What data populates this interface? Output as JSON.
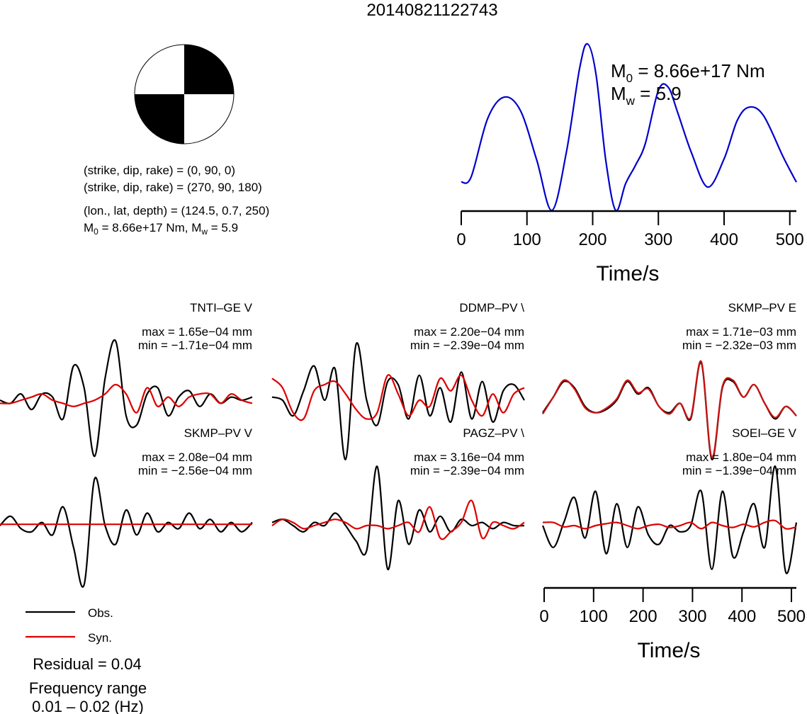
{
  "title": "20140821122743",
  "beachball": {
    "colors": {
      "fill": "#000000",
      "background": "#ffffff"
    }
  },
  "params": {
    "line1": "(strike, dip, rake) = (0, 90, 0)",
    "line2": "(strike, dip, rake) = (270, 90, 180)",
    "line3": "(lon., lat, depth) = (124.5, 0.7, 250)",
    "m0_label": "M",
    "m0_sub": "0",
    "m0_value": " = 8.66e+17 Nm, M",
    "mw_sub": "w",
    "mw_value": " = 5.9"
  },
  "stf_annotation": {
    "m0_label": "M",
    "m0_sub": "0",
    "m0_value": " = 8.66e+17 Nm",
    "mw_label": "M",
    "mw_sub": "w",
    "mw_value": " = 5.9"
  },
  "legend": {
    "obs_label": "Obs.",
    "syn_label": "Syn.",
    "residual": "Residual = 0.04",
    "freq_label": "Frequency range",
    "freq_value": "0.01 – 0.02 (Hz)"
  },
  "chart_data": [
    {
      "type": "line",
      "id": "source-time-function",
      "xlabel": "Time/s",
      "xlim": [
        0,
        510
      ],
      "xticks": [
        0,
        100,
        200,
        300,
        400,
        500
      ],
      "series": [
        {
          "color": "#0000cc",
          "x": [
            0,
            15,
            40,
            65,
            90,
            115,
            138,
            160,
            180,
            192,
            205,
            220,
            235,
            250,
            265,
            280,
            300,
            315,
            330,
            350,
            375,
            400,
            420,
            438,
            460,
            490,
            510
          ],
          "y": [
            0.17,
            0.2,
            0.55,
            0.68,
            0.6,
            0.3,
            0.0,
            0.35,
            0.85,
            1.0,
            0.82,
            0.3,
            0.0,
            0.16,
            0.27,
            0.4,
            0.72,
            0.74,
            0.58,
            0.35,
            0.14,
            0.31,
            0.54,
            0.62,
            0.57,
            0.32,
            0.17
          ]
        }
      ]
    },
    {
      "type": "line",
      "id": "TNTI-GE",
      "station": "TNTI–GE V",
      "max": "max = 1.65e−04 mm",
      "min": "min = −1.71e−04 mm",
      "series": [
        {
          "name": "Obs.",
          "color": "#000000",
          "y": [
            0,
            -0.05,
            0.1,
            -0.15,
            0.1,
            0.05,
            -0.3,
            0.55,
            0.2,
            -0.9,
            0.35,
            0.95,
            -0.25,
            -0.4,
            0.1,
            0.2,
            -0.25,
            0.05,
            0.15,
            -0.1,
            0.1,
            -0.05,
            0.05,
            0.0,
            0.05
          ]
        },
        {
          "name": "Syn.",
          "color": "#dd0000",
          "y": [
            -0.05,
            -0.05,
            0.0,
            0.05,
            0.1,
            0.0,
            -0.05,
            -0.1,
            -0.05,
            0.0,
            0.1,
            0.25,
            0.1,
            -0.2,
            0.2,
            -0.1,
            0.05,
            -0.1,
            0.05,
            0.1,
            0.1,
            -0.05,
            0.1,
            0.0,
            -0.05
          ]
        }
      ]
    },
    {
      "type": "line",
      "id": "DDMP-PV",
      "station": "DDMP–PV \\",
      "max": "max = 2.20e−04 mm",
      "min": "min = −2.39e−04 mm",
      "series": [
        {
          "name": "Obs.",
          "color": "#000000",
          "y": [
            0.05,
            0.0,
            -0.25,
            0.15,
            0.55,
            0.0,
            0.5,
            -0.95,
            0.9,
            0.0,
            -0.4,
            0.3,
            0.25,
            -0.3,
            0.4,
            -0.25,
            0.2,
            -0.35,
            0.45,
            -0.3,
            0.3,
            -0.35,
            0.15,
            0.25,
            0.0
          ]
        },
        {
          "name": "Syn.",
          "color": "#dd0000",
          "y": [
            0.35,
            0.2,
            -0.2,
            -0.3,
            0.15,
            0.25,
            0.3,
            0.1,
            -0.15,
            -0.3,
            -0.2,
            0.4,
            0.1,
            -0.25,
            0.0,
            -0.1,
            0.35,
            0.15,
            0.4,
            0.0,
            -0.25,
            0.1,
            -0.2,
            0.1,
            0.2
          ]
        }
      ]
    },
    {
      "type": "line",
      "id": "SKMP-PV-E",
      "station": "SKMP–PV E",
      "max": "max = 1.71e−03 mm",
      "min": "min = −2.32e−03 mm",
      "series": [
        {
          "name": "Obs.",
          "color": "#000000",
          "y": [
            -0.2,
            0.05,
            0.3,
            0.2,
            -0.1,
            -0.2,
            -0.15,
            0.0,
            0.3,
            0.1,
            0.2,
            -0.1,
            -0.2,
            -0.05,
            -0.3,
            0.6,
            -0.95,
            0.2,
            0.3,
            0.05,
            0.25,
            -0.05,
            -0.3,
            -0.1,
            -0.25
          ]
        },
        {
          "name": "Syn.",
          "color": "#cc1111",
          "y": [
            -0.22,
            0.05,
            0.32,
            0.18,
            -0.12,
            -0.2,
            -0.13,
            0.02,
            0.32,
            0.12,
            0.18,
            -0.1,
            -0.22,
            -0.05,
            -0.28,
            0.62,
            -0.92,
            0.22,
            0.32,
            0.05,
            0.25,
            -0.05,
            -0.28,
            -0.1,
            -0.25
          ]
        }
      ]
    },
    {
      "type": "line",
      "id": "SKMP-PV-V",
      "station": "SKMP–PV V",
      "max": "max = 2.08e−04 mm",
      "min": "min = −2.56e−04 mm",
      "series": [
        {
          "name": "Obs.",
          "color": "#000000",
          "y": [
            0.0,
            0.15,
            -0.05,
            -0.1,
            0.05,
            -0.15,
            0.3,
            -0.35,
            -0.95,
            0.75,
            0.0,
            -0.3,
            0.25,
            -0.15,
            0.2,
            -0.1,
            0.05,
            -0.05,
            0.2,
            -0.05,
            0.1,
            -0.1,
            0.05,
            -0.1,
            0.05
          ]
        },
        {
          "name": "Syn.",
          "color": "#dd0000",
          "y": [
            0.02,
            0.02,
            0.02,
            0.02,
            0.02,
            0.02,
            0.02,
            0.02,
            0.02,
            0.02,
            0.02,
            0.02,
            0.02,
            0.02,
            0.02,
            0.02,
            0.02,
            0.02,
            0.02,
            0.02,
            0.02,
            0.02,
            0.02,
            0.02,
            0.02
          ]
        }
      ]
    },
    {
      "type": "line",
      "id": "PAGZ-PV",
      "station": "PAGZ–PV \\",
      "max": "max = 3.16e−04 mm",
      "min": "min = −2.39e−04 mm",
      "series": [
        {
          "name": "Obs.",
          "color": "#000000",
          "y": [
            0.05,
            0.1,
            0.0,
            -0.1,
            0.05,
            0.0,
            0.2,
            0.0,
            -0.25,
            -0.4,
            0.95,
            -0.7,
            0.4,
            -0.3,
            0.25,
            -0.1,
            0.15,
            -0.1,
            0.1,
            0.0,
            0.05,
            -0.05,
            0.05,
            0.0,
            0.0
          ]
        },
        {
          "name": "Syn.",
          "color": "#dd0000",
          "y": [
            0.0,
            0.1,
            0.05,
            -0.05,
            0.0,
            0.05,
            0.1,
            0.05,
            -0.05,
            0.0,
            0.0,
            -0.05,
            0.0,
            0.05,
            -0.1,
            0.3,
            -0.2,
            -0.1,
            0.05,
            0.4,
            -0.2,
            0.05,
            0.0,
            -0.05,
            0.05
          ]
        }
      ]
    },
    {
      "type": "line",
      "id": "SOEI-GE",
      "station": "SOEI–GE V",
      "max": "max = 1.80e−04 mm",
      "min": "min = −1.39e−04 mm",
      "series": [
        {
          "name": "Obs.",
          "color": "#000000",
          "y": [
            0.0,
            -0.35,
            0.05,
            0.45,
            -0.2,
            0.55,
            -0.45,
            0.35,
            -0.35,
            0.3,
            -0.15,
            -0.3,
            0.0,
            -0.1,
            0.0,
            0.55,
            -0.7,
            0.55,
            -0.5,
            -0.1,
            0.35,
            -0.35,
            0.95,
            -0.75,
            0.05
          ]
        },
        {
          "name": "Syn.",
          "color": "#dd0000",
          "y": [
            0.05,
            0.05,
            -0.02,
            0.0,
            -0.05,
            0.0,
            0.03,
            0.05,
            0.0,
            -0.05,
            0.0,
            0.02,
            -0.03,
            0.0,
            0.05,
            -0.05,
            0.05,
            0.0,
            -0.03,
            0.02,
            -0.02,
            0.05,
            0.08,
            -0.05,
            -0.02
          ]
        }
      ]
    },
    {
      "type": "axis",
      "id": "waveform-time-axis",
      "xlabel": "Time/s",
      "xlim": [
        0,
        510
      ],
      "xticks": [
        0,
        100,
        200,
        300,
        400,
        500
      ]
    }
  ]
}
